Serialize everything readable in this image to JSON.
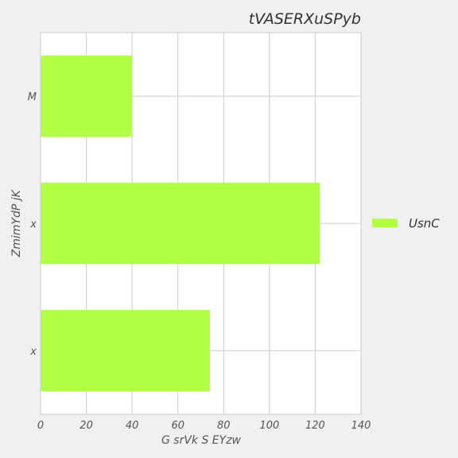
{
  "chart_data": {
    "type": "bar",
    "orientation": "horizontal",
    "title": "tVASERXuSPyb",
    "xlabel": "G srVk S EYzw",
    "ylabel": "ZmimYdP jK",
    "categories": [
      "M",
      "x",
      "x"
    ],
    "series": [
      {
        "name": "UsnC",
        "values": [
          40,
          122,
          74
        ],
        "color": "#b3ff47"
      }
    ],
    "xlim": [
      0,
      140
    ],
    "xticks": [
      "0",
      "20",
      "40",
      "60",
      "80",
      "100",
      "120",
      "140"
    ],
    "grid": true,
    "legend_position": "right"
  }
}
